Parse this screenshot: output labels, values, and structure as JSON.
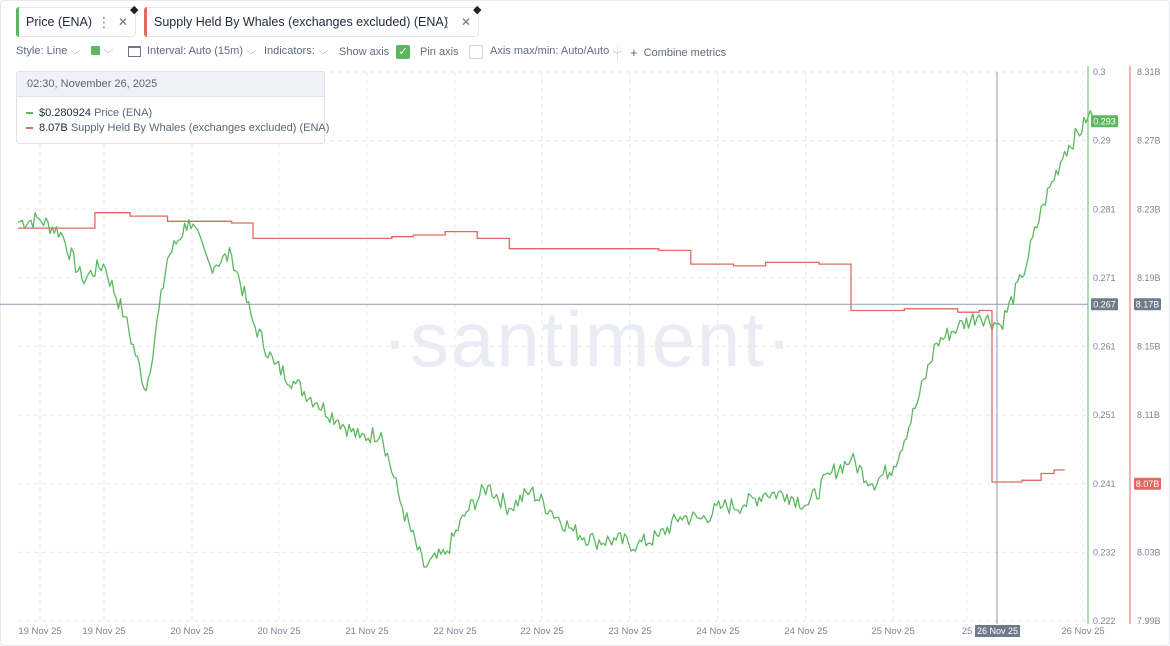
{
  "metrics": [
    {
      "label": "Price (ENA)",
      "color": "#5cb860"
    },
    {
      "label": "Supply Held By Whales (exchanges excluded) (ENA)",
      "color": "#e06a5f"
    }
  ],
  "toolbar": {
    "style_label": "Style: Line",
    "interval_label": "Interval: Auto (15m)",
    "indicators_label": "Indicators:",
    "show_axis_label": "Show axis",
    "pin_axis_label": "Pin axis",
    "axis_maxmin_label": "Axis max/min: Auto/Auto",
    "combine_label": "Combine metrics",
    "show_axis_checked": true,
    "pin_axis_checked": false
  },
  "tooltip": {
    "timestamp": "02:30, November 26, 2025",
    "rows": [
      {
        "value": "$0.280924",
        "label": "Price (ENA)",
        "color": "#5cb860"
      },
      {
        "value": "8.07B",
        "label": "Supply Held By Whales (exchanges excluded) (ENA)",
        "color": "#e06a5f"
      }
    ]
  },
  "watermark": "·santiment·",
  "chart_data": {
    "type": "line",
    "x_tick_labels": [
      "19 Nov 25",
      "19 Nov 25",
      "20 Nov 25",
      "20 Nov 25",
      "21 Nov 25",
      "22 Nov 25",
      "22 Nov 25",
      "23 Nov 25",
      "24 Nov 25",
      "24 Nov 25",
      "25 Nov 25",
      "25",
      "26 Nov 25",
      "26 Nov 25"
    ],
    "crosshair_x_label": "26 Nov 25",
    "left_axis": {
      "series": "Price (ENA)",
      "ticks": [
        "0.3",
        "0.29",
        "0.281",
        "0.271",
        "0.261",
        "0.251",
        "0.241",
        "0.232",
        "0.222"
      ],
      "ylim": [
        0.222,
        0.3
      ]
    },
    "right_axis": {
      "series": "Supply Held By Whales (exchanges excluded) (ENA)",
      "ticks": [
        "8.31B",
        "8.27B",
        "8.23B",
        "8.19B",
        "8.15B",
        "8.11B",
        "8.07B",
        "8.03B",
        "7.99B"
      ],
      "ylim": [
        7.99,
        8.31
      ],
      "unit": "B"
    },
    "badges": {
      "price_last": "0.293",
      "supply_last": "8.07B",
      "crosshair_left": "0.267",
      "crosshair_right": "8.17B"
    },
    "series": [
      {
        "name": "Price (ENA)",
        "color": "#5cb860",
        "x": [
          0,
          2,
          4,
          6,
          8,
          10,
          12,
          14,
          16,
          18,
          20,
          22,
          24,
          26,
          28,
          30,
          32,
          34,
          36,
          38,
          40,
          42,
          44,
          46,
          48,
          50,
          52,
          54,
          56,
          58,
          60,
          62,
          64,
          66,
          68,
          70,
          72,
          74,
          76,
          78,
          80,
          82,
          84,
          86,
          88,
          90,
          92,
          94,
          96,
          98,
          100
        ],
        "values": [
          0.2787,
          0.2791,
          0.2772,
          0.2705,
          0.2727,
          0.2652,
          0.2547,
          0.2735,
          0.279,
          0.2725,
          0.274,
          0.2645,
          0.2585,
          0.2557,
          0.253,
          0.2505,
          0.248,
          0.2488,
          0.238,
          0.2297,
          0.2315,
          0.2375,
          0.2412,
          0.238,
          0.2405,
          0.2375,
          0.2348,
          0.2334,
          0.2335,
          0.2328,
          0.234,
          0.2368,
          0.2365,
          0.2383,
          0.2385,
          0.2402,
          0.24,
          0.2385,
          0.2428,
          0.245,
          0.2415,
          0.244,
          0.2522,
          0.2615,
          0.2638,
          0.2655,
          0.264,
          0.2708,
          0.2812,
          0.2887,
          0.2928
        ]
      },
      {
        "name": "Supply Held By Whales (exchanges excluded) (ENA)",
        "color": "#e06a5f",
        "steps": [
          [
            0,
            8.219
          ],
          [
            7.2,
            8.228
          ],
          [
            10.5,
            8.226
          ],
          [
            14,
            8.223
          ],
          [
            20,
            8.222
          ],
          [
            22,
            8.213
          ],
          [
            30,
            8.213
          ],
          [
            35,
            8.214
          ],
          [
            37,
            8.215
          ],
          [
            40,
            8.217
          ],
          [
            43,
            8.213
          ],
          [
            46,
            8.207
          ],
          [
            60,
            8.206
          ],
          [
            63,
            8.198
          ],
          [
            67,
            8.197
          ],
          [
            70,
            8.199
          ],
          [
            75,
            8.198
          ],
          [
            78,
            8.171
          ],
          [
            83,
            8.172
          ],
          [
            88,
            8.17
          ],
          [
            90,
            8.171
          ],
          [
            91.2,
            8.071
          ],
          [
            94,
            8.072
          ],
          [
            95.8,
            8.076
          ],
          [
            97,
            8.078
          ],
          [
            98,
            8.078
          ]
        ]
      }
    ]
  }
}
